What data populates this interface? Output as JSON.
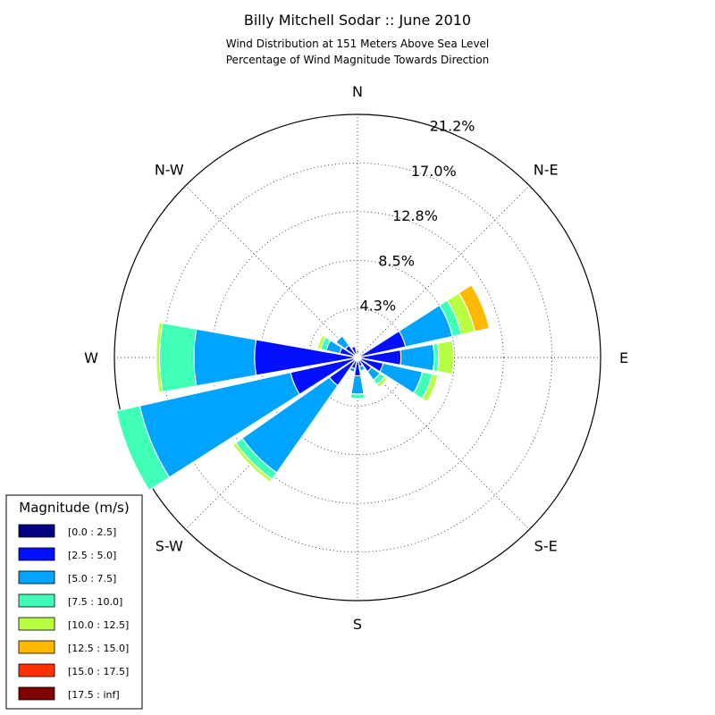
{
  "chart_data": {
    "type": "windrose",
    "title": "Billy Mitchell Sodar :: June 2010",
    "subtitle_line1": "Wind Distribution at 151 Meters Above Sea Level",
    "subtitle_line2": "Percentage of Wind Magnitude Towards Direction",
    "directions": [
      "N",
      "N-E",
      "E",
      "S-E",
      "S",
      "S-W",
      "W",
      "N-W"
    ],
    "radial_ticks": [
      "4.3%",
      "8.5%",
      "12.8%",
      "17.0%",
      "21.2%"
    ],
    "radial_tick_values": [
      4.25,
      8.5,
      12.75,
      17.0,
      21.25
    ],
    "rmax": 21.25,
    "grid": true,
    "legend": {
      "title": "Magnitude (m/s)",
      "placement": "lower-left",
      "bins": [
        "[0.0 : 2.5]",
        "[2.5 : 5.0]",
        "[5.0 : 7.5]",
        "[7.5 : 10.0]",
        "[10.0 : 12.5]",
        "[12.5 : 15.0]",
        "[15.0 : 17.5]",
        "[17.5 : inf]"
      ],
      "colors": [
        "#000080",
        "#0010ff",
        "#00a4ff",
        "#40ffb7",
        "#b7ff40",
        "#ffb900",
        "#ff3000",
        "#800000"
      ]
    },
    "sectors": [
      {
        "direction_deg": 0,
        "cumulative": [
          0.3,
          0.6
        ]
      },
      {
        "direction_deg": 22.5,
        "cumulative": [
          0.2,
          0.4
        ]
      },
      {
        "direction_deg": 45,
        "cumulative": [
          0.2,
          0.3
        ]
      },
      {
        "direction_deg": 67.5,
        "cumulative": [
          0.3,
          4.3,
          8.5,
          9.3,
          10.5,
          11.8
        ]
      },
      {
        "direction_deg": 90,
        "cumulative": [
          0.3,
          3.8,
          6.7,
          7.1,
          8.4
        ]
      },
      {
        "direction_deg": 112.5,
        "cumulative": [
          0.3,
          2.3,
          5.8,
          6.7,
          7.2
        ]
      },
      {
        "direction_deg": 135,
        "cumulative": [
          0.3,
          1.5,
          2.4,
          2.9,
          3.2
        ]
      },
      {
        "direction_deg": 157.5,
        "cumulative": [
          0.3,
          0.8,
          1.2
        ]
      },
      {
        "direction_deg": 180,
        "cumulative": [
          0.3,
          1.6,
          3.2,
          3.6
        ]
      },
      {
        "direction_deg": 202.5,
        "cumulative": [
          0.2,
          1.0,
          1.3
        ]
      },
      {
        "direction_deg": 225,
        "cumulative": [
          0.3,
          3.0,
          12.3,
          13.0,
          13.3
        ]
      },
      {
        "direction_deg": 247.5,
        "cumulative": [
          0.3,
          6.0,
          19.5,
          21.6
        ]
      },
      {
        "direction_deg": 270,
        "cumulative": [
          0.3,
          9.0,
          14.3,
          17.3,
          17.6
        ]
      },
      {
        "direction_deg": 292.5,
        "cumulative": [
          0.3,
          1.6,
          2.8,
          3.3,
          3.6
        ]
      },
      {
        "direction_deg": 315,
        "cumulative": [
          0.3,
          1.3,
          2.3
        ]
      },
      {
        "direction_deg": 337.5,
        "cumulative": [
          0.3,
          1.0
        ]
      }
    ]
  }
}
